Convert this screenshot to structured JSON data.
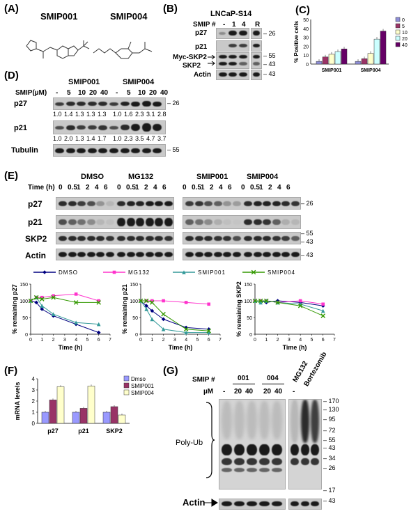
{
  "panel_labels": [
    "(A)",
    "(B)",
    "(C)",
    "(D)",
    "(E)",
    "(F)",
    "(G)"
  ],
  "panel_a": {
    "compound1": "SMIP001",
    "compound2": "SMIP004"
  },
  "panel_b": {
    "title": "LNCaP-S14",
    "smip_label": "SMIP #",
    "lanes": [
      "-",
      "1",
      "4",
      "R"
    ],
    "rows": [
      "p27",
      "p21",
      "Myc-SKP2",
      "SKP2",
      "Actin"
    ],
    "mw": [
      "26",
      "55",
      "43",
      "43"
    ]
  },
  "panel_c": {
    "ylabel": "% Positive cells",
    "groups": [
      "SMIP001",
      "SMIP004"
    ],
    "legend": [
      "0",
      "5",
      "10",
      "20",
      "40"
    ],
    "yticks": [
      "0",
      "10",
      "20",
      "30",
      "40",
      "50"
    ]
  },
  "panel_d": {
    "col1": "SMIP001",
    "col2": "SMIP004",
    "smip_label": "SMIP(µM)",
    "conc": [
      "-",
      "5",
      "10",
      "20",
      "40",
      "-",
      "5",
      "10",
      "20",
      "40"
    ],
    "rows": [
      "p27",
      "p21",
      "Tubulin"
    ],
    "p27_vals": [
      "1.0",
      "1.4",
      "1.3",
      "1.3",
      "1.3",
      "1.0",
      "1.6",
      "2.3",
      "3.1",
      "2.8"
    ],
    "p21_vals": [
      "1.0",
      "2.0",
      "1.3",
      "1.4",
      "1.7",
      "1.0",
      "2.3",
      "3.5",
      "4.7",
      "3.7"
    ],
    "mw": [
      "26",
      "55"
    ]
  },
  "panel_e": {
    "time_label": "Time (h)",
    "conditions": [
      "DMSO",
      "MG132",
      "SMIP001",
      "SMIP004"
    ],
    "times": [
      "0",
      "0.5",
      "1",
      "2",
      "4",
      "6"
    ],
    "rows": [
      "p27",
      "p21",
      "SKP2",
      "Actin"
    ],
    "mw": [
      "26",
      "55",
      "43",
      "43"
    ],
    "legend": [
      "DMSO",
      "MG132",
      "SMIP001",
      "SMIP004"
    ],
    "xlabel": "Time (h)",
    "ylabels": [
      "% remaining p27",
      "% remaining p21",
      "% remaining SKP2"
    ]
  },
  "panel_f": {
    "ylabel": "mRNA levels",
    "groups": [
      "p27",
      "p21",
      "SKP2"
    ],
    "legend": [
      "Dmso",
      "SMIP001",
      "SMIP004"
    ],
    "yticks": [
      "0",
      "1",
      "2",
      "3",
      "4"
    ]
  },
  "panel_g": {
    "smip_label": "SMIP #",
    "um_label": "µM",
    "groups": [
      "001",
      "004"
    ],
    "lanes": [
      "-",
      "20",
      "40",
      "20",
      "40"
    ],
    "extra_lanes": [
      "MG132",
      "Bortezomib"
    ],
    "polyub": "Poly-Ub",
    "actin": "Actin",
    "mw": [
      "170",
      "130",
      "95",
      "72",
      "55",
      "43",
      "34",
      "26",
      "17",
      "43"
    ]
  },
  "chart_data": [
    {
      "type": "bar",
      "title": "",
      "ylabel": "% Positive cells",
      "categories": [
        "SMIP001",
        "SMIP004"
      ],
      "ylim": [
        0,
        50
      ],
      "series": [
        {
          "name": "0",
          "values": [
            3,
            3
          ]
        },
        {
          "name": "5",
          "values": [
            8,
            6
          ]
        },
        {
          "name": "10",
          "values": [
            11,
            12
          ]
        },
        {
          "name": "20",
          "values": [
            14,
            28
          ]
        },
        {
          "name": "40",
          "values": [
            17,
            37
          ]
        }
      ],
      "colors": [
        "#8e8ed8",
        "#9b3366",
        "#ffffcc",
        "#ccffff",
        "#660066"
      ]
    },
    {
      "type": "line",
      "ylabel": "% remaining p27",
      "xlabel": "Time (h)",
      "x": [
        0,
        0.5,
        1,
        2,
        4,
        6
      ],
      "xlim": [
        0,
        7
      ],
      "ylim": [
        0,
        150
      ],
      "series": [
        {
          "name": "DMSO",
          "values": [
            100,
            95,
            75,
            55,
            30,
            5
          ]
        },
        {
          "name": "MG132",
          "values": [
            100,
            110,
            110,
            115,
            120,
            100
          ]
        },
        {
          "name": "SMIP001",
          "values": [
            100,
            110,
            85,
            60,
            35,
            30
          ]
        },
        {
          "name": "SMIP004",
          "values": [
            100,
            110,
            105,
            110,
            95,
            95
          ]
        }
      ]
    },
    {
      "type": "line",
      "ylabel": "% remaining p21",
      "xlabel": "Time (h)",
      "x": [
        0,
        0.5,
        1,
        2,
        4,
        6
      ],
      "xlim": [
        0,
        7
      ],
      "ylim": [
        0,
        150
      ],
      "series": [
        {
          "name": "DMSO",
          "values": [
            100,
            85,
            70,
            45,
            20,
            15
          ]
        },
        {
          "name": "MG132",
          "values": [
            100,
            100,
            100,
            100,
            95,
            90
          ]
        },
        {
          "name": "SMIP001",
          "values": [
            100,
            75,
            45,
            15,
            5,
            5
          ]
        },
        {
          "name": "SMIP004",
          "values": [
            100,
            100,
            95,
            60,
            15,
            10
          ]
        }
      ]
    },
    {
      "type": "line",
      "ylabel": "% remaining SKP2",
      "xlabel": "Time (h)",
      "x": [
        0,
        0.5,
        1,
        2,
        4,
        6
      ],
      "xlim": [
        0,
        7
      ],
      "ylim": [
        0,
        150
      ],
      "series": [
        {
          "name": "DMSO",
          "values": [
            100,
            100,
            95,
            100,
            95,
            85
          ]
        },
        {
          "name": "MG132",
          "values": [
            100,
            100,
            100,
            95,
            100,
            90
          ]
        },
        {
          "name": "SMIP001",
          "values": [
            100,
            95,
            100,
            95,
            90,
            70
          ]
        },
        {
          "name": "SMIP004",
          "values": [
            100,
            100,
            100,
            95,
            85,
            55
          ]
        }
      ]
    },
    {
      "type": "bar",
      "ylabel": "mRNA levels",
      "categories": [
        "p27",
        "p21",
        "SKP2"
      ],
      "ylim": [
        0,
        4
      ],
      "series": [
        {
          "name": "Dmso",
          "values": [
            1.0,
            1.0,
            1.0
          ]
        },
        {
          "name": "SMIP001",
          "values": [
            2.1,
            1.35,
            1.5
          ]
        },
        {
          "name": "SMIP004",
          "values": [
            3.3,
            3.35,
            0.75
          ]
        }
      ],
      "colors": [
        "#9999ff",
        "#993366",
        "#ffffcc"
      ]
    }
  ]
}
